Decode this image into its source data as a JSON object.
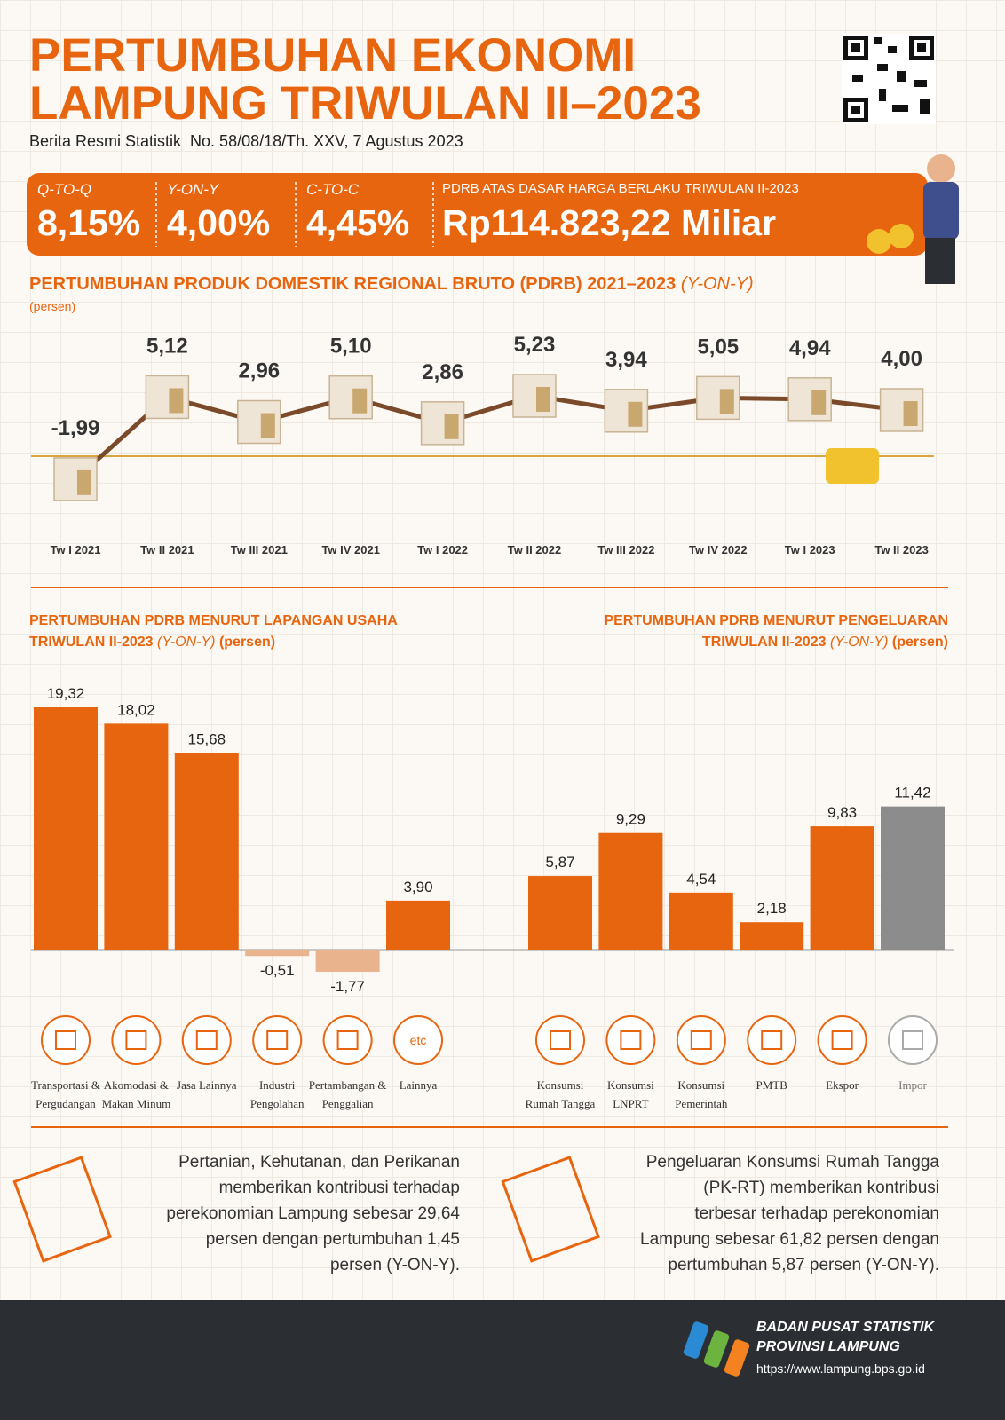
{
  "header": {
    "title_lines": [
      "PERTUMBUHAN EKONOMI",
      "LAMPUNG TRIWULAN II–2023"
    ],
    "subtitle": "Berita Resmi Statistik  No. 58/08/18/Th. XXV, 7 Agustus 2023"
  },
  "highlights": [
    {
      "label": "Q-TO-Q",
      "value": "8,15%"
    },
    {
      "label": "Y-ON-Y",
      "value": "4,00%"
    },
    {
      "label": "C-TO-C",
      "value": "4,45%"
    },
    {
      "label": "PDRB ATAS DASAR HARGA BERLAKU TRIWULAN II-2023",
      "value": "Rp114.823,22 Miliar"
    }
  ],
  "chart_data": [
    {
      "type": "line",
      "title": "PERTUMBUHAN PRODUK DOMESTIK REGIONAL BRUTO (PDRB) 2021–2023",
      "title_note": "(Y-ON-Y)",
      "unit": "(persen)",
      "categories": [
        "Tw I 2021",
        "Tw II 2021",
        "Tw III 2021",
        "Tw IV 2021",
        "Tw I 2022",
        "Tw II 2022",
        "Tw III 2022",
        "Tw IV 2022",
        "Tw I 2023",
        "Tw II 2023"
      ],
      "values": [
        -1.99,
        5.12,
        2.96,
        5.1,
        2.86,
        5.23,
        3.94,
        5.05,
        4.94,
        4.0
      ],
      "value_labels": [
        "-1,99",
        "5,12",
        "2,96",
        "5,10",
        "2,86",
        "5,23",
        "3,94",
        "5,05",
        "4,94",
        "4,00"
      ],
      "color": "#7a4a2a"
    },
    {
      "type": "bar",
      "title_lines": [
        "PERTUMBUHAN PDRB MENURUT LAPANGAN USAHA",
        "TRIWULAN II-2023"
      ],
      "title_note": "(Y-ON-Y)",
      "unit": "(persen)",
      "categories": [
        "Transportasi & Pergudangan",
        "Akomodasi & Makan Minum",
        "Jasa Lainnya",
        "Industri Pengolahan",
        "Pertambangan & Penggalian",
        "Lainnya"
      ],
      "values": [
        19.32,
        18.02,
        15.68,
        -0.51,
        -1.77,
        3.9
      ],
      "value_labels": [
        "19,32",
        "18,02",
        "15,68",
        "-0,51",
        "-1,77",
        "3,90"
      ],
      "color": "#e8650f",
      "negative_color": "#e9b48d"
    },
    {
      "type": "bar",
      "title_lines": [
        "PERTUMBUHAN PDRB MENURUT PENGELUARAN",
        "TRIWULAN II-2023"
      ],
      "title_note": "(Y-ON-Y)",
      "unit": "(persen)",
      "categories": [
        "Konsumsi Rumah Tangga",
        "Konsumsi LNPRT",
        "Konsumsi Pemerintah",
        "PMTB",
        "Ekspor",
        "Impor"
      ],
      "values": [
        5.87,
        9.29,
        4.54,
        2.18,
        9.83,
        11.42
      ],
      "value_labels": [
        "5,87",
        "9,29",
        "4,54",
        "2,18",
        "9,83",
        "11,42"
      ],
      "colors": [
        "#e8650f",
        "#e8650f",
        "#e8650f",
        "#e8650f",
        "#e8650f",
        "#8c8c8c"
      ]
    }
  ],
  "icon_text": "etc",
  "notes": [
    [
      "Pertanian, Kehutanan, dan Perikanan",
      "memberikan kontribusi terhadap",
      "perekonomian Lampung sebesar 29,64",
      "persen dengan pertumbuhan 1,45",
      "persen (Y-ON-Y)."
    ],
    [
      "Pengeluaran Konsumsi Rumah Tangga",
      "(PK-RT) memberikan kontribusi",
      "terbesar terhadap perekonomian",
      "Lampung sebesar 61,82 persen dengan",
      "pertumbuhan 5,87 persen (Y-ON-Y)."
    ]
  ],
  "footer": {
    "org_lines": [
      "BADAN PUSAT STATISTIK",
      "PROVINSI LAMPUNG"
    ],
    "url": "https://www.lampung.bps.go.id"
  }
}
